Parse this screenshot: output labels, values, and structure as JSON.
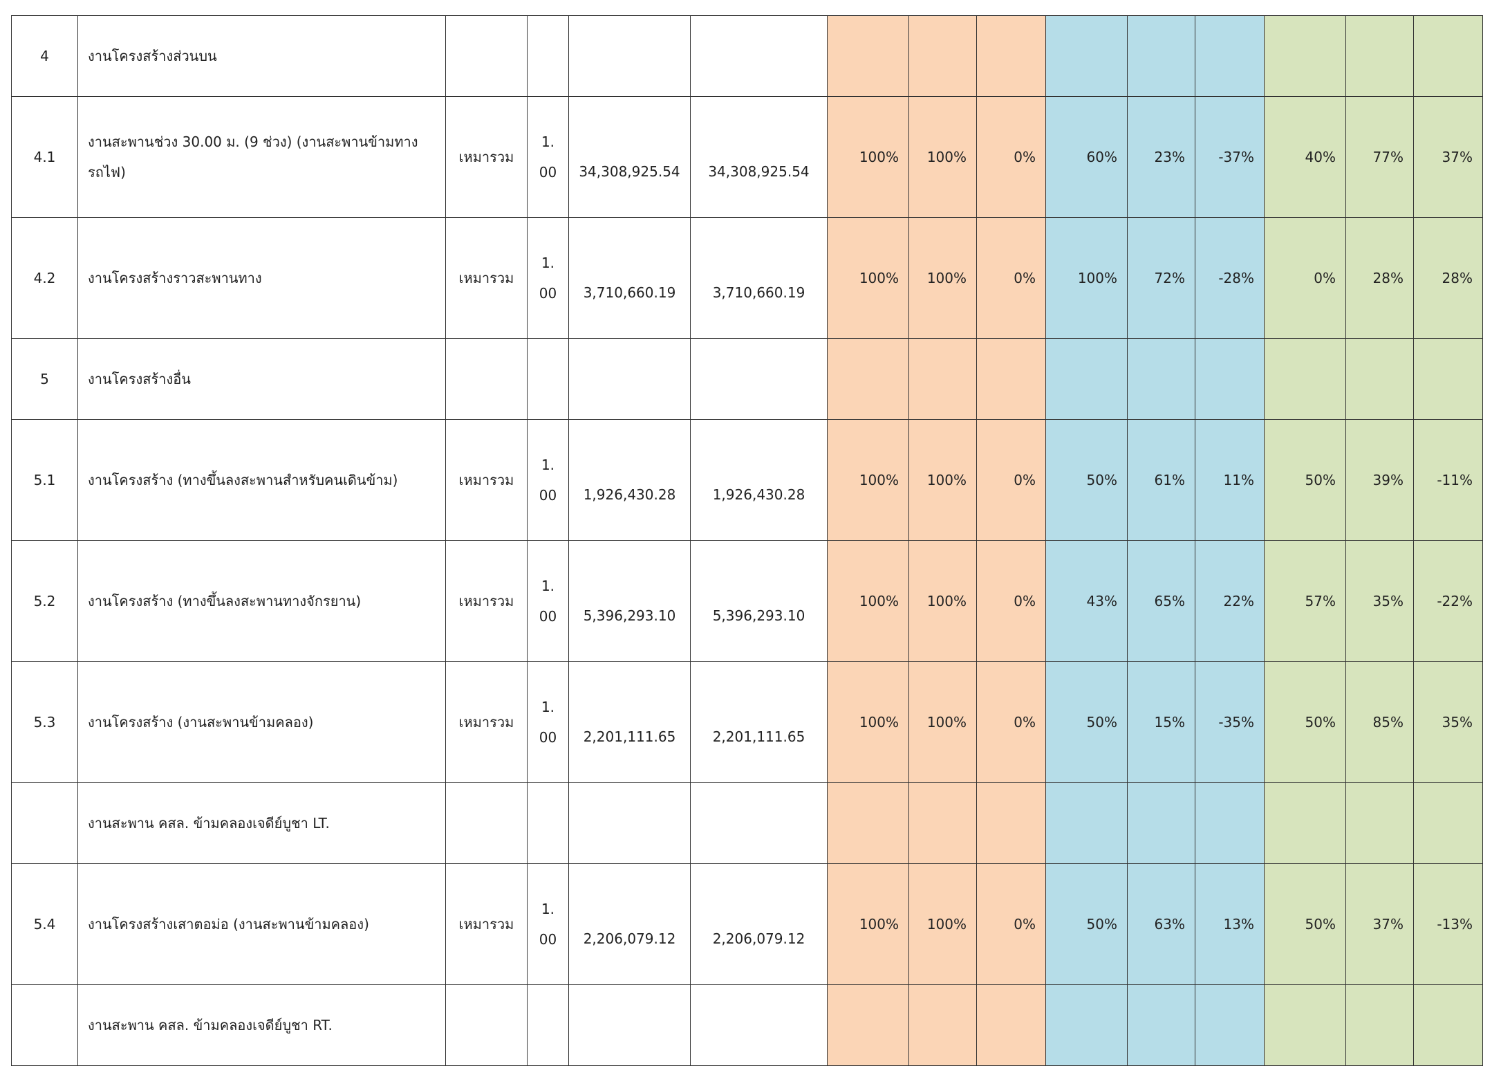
{
  "rows": [
    {
      "type": "hdr",
      "no": "4",
      "desc": "งานโครงสร้างส่วนบน"
    },
    {
      "type": "item",
      "no": "4.1",
      "desc": "งานสะพานช่วง 30.00 ม. (9 ช่วง) (งานสะพานข้ามทางรถไฟ)",
      "unit": "เหมารวม",
      "qty": "1.\n00",
      "price": "34,308,925.54",
      "amount": "34,308,925.54",
      "p": [
        "100%",
        "100%",
        "0%",
        "60%",
        "23%",
        "-37%",
        "40%",
        "77%",
        "37%"
      ]
    },
    {
      "type": "item",
      "no": "4.2",
      "desc": "งานโครงสร้างราวสะพานทาง",
      "unit": "เหมารวม",
      "qty": "1.\n00",
      "price": "3,710,660.19",
      "amount": "3,710,660.19",
      "p": [
        "100%",
        "100%",
        "0%",
        "100%",
        "72%",
        "-28%",
        "0%",
        "28%",
        "28%"
      ]
    },
    {
      "type": "hdr",
      "no": "5",
      "desc": "งานโครงสร้างอื่น"
    },
    {
      "type": "item",
      "no": "5.1",
      "desc": "งานโครงสร้าง (ทางขึ้นลงสะพานสำหรับคนเดินข้าม)",
      "unit": "เหมารวม",
      "qty": "1.\n00",
      "price": "1,926,430.28",
      "amount": "1,926,430.28",
      "p": [
        "100%",
        "100%",
        "0%",
        "50%",
        "61%",
        "11%",
        "50%",
        "39%",
        "-11%"
      ]
    },
    {
      "type": "item",
      "no": "5.2",
      "desc": "งานโครงสร้าง (ทางขึ้นลงสะพานทางจักรยาน)",
      "unit": "เหมารวม",
      "qty": "1.\n00",
      "price": "5,396,293.10",
      "amount": "5,396,293.10",
      "p": [
        "100%",
        "100%",
        "0%",
        "43%",
        "65%",
        "22%",
        "57%",
        "35%",
        "-22%"
      ]
    },
    {
      "type": "item",
      "no": "5.3",
      "desc": "งานโครงสร้าง (งานสะพานข้ามคลอง)",
      "unit": "เหมารวม",
      "qty": "1.\n00",
      "price": "2,201,111.65",
      "amount": "2,201,111.65",
      "p": [
        "100%",
        "100%",
        "0%",
        "50%",
        "15%",
        "-35%",
        "50%",
        "85%",
        "35%"
      ]
    },
    {
      "type": "hdr",
      "no": "",
      "desc": "งานสะพาน คสล.  ข้ามคลองเจดีย์บูชา LT."
    },
    {
      "type": "item",
      "no": "5.4",
      "desc": "งานโครงสร้างเสาตอม่อ (งานสะพานข้ามคลอง)",
      "unit": "เหมารวม",
      "qty": "1.\n00",
      "price": "2,206,079.12",
      "amount": "2,206,079.12",
      "p": [
        "100%",
        "100%",
        "0%",
        "50%",
        "63%",
        "13%",
        "50%",
        "37%",
        "-13%"
      ]
    },
    {
      "type": "hdr",
      "no": "",
      "desc": "งานสะพาน คสล.  ข้ามคลองเจดีย์บูชา RT."
    }
  ]
}
